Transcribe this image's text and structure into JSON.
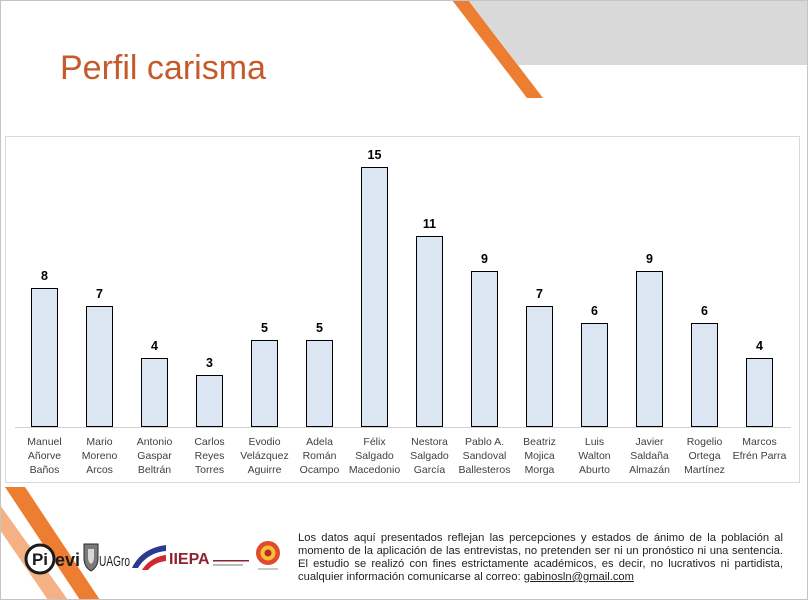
{
  "chart_data": {
    "type": "bar",
    "title": "Perfil carisma",
    "categories": [
      "Manuel\nAñorve\nBaños",
      "Mario\nMoreno\nArcos",
      "Antonio\nGaspar\nBeltrán",
      "Carlos\nReyes\nTorres",
      "Evodio\nVelázquez\nAguirre",
      "Adela\nRomán\nOcampo",
      "Félix\nSalgado\nMacedonio",
      "Nestora\nSalgado\nGarcía",
      "Pablo A.\nSandoval\nBallesteros",
      "Beatriz\nMojica\nMorga",
      "Luis\nWalton\nAburto",
      "Javier\nSaldaña\nAlmazán",
      "Rogelio\nOrtega\nMartínez",
      "Marcos\nEfrén Parra"
    ],
    "values": [
      8,
      7,
      4,
      3,
      5,
      5,
      15,
      11,
      9,
      7,
      6,
      9,
      6,
      4
    ],
    "data_labels": true,
    "y_axis_visible": false,
    "grid": false,
    "legend": "none",
    "colors": {
      "bar_fill": "#DCE6F2",
      "bar_border": "#000000",
      "value_label": "#000000",
      "category_label": "#404040"
    }
  },
  "theme": {
    "title_color": "#C55A2A",
    "accent_orange": "#ED7D31",
    "accent_peach": "#F4B183",
    "header_gray": "#D9D9D9"
  },
  "logos": {
    "pievi": {
      "icon": "pievi-logo",
      "mark": "Pi",
      "word": "evi"
    },
    "uagro": {
      "icon": "uagro-crest-icon",
      "text": "UAGro"
    },
    "partner": {
      "icon": "blue-red-swoosh-logo"
    },
    "iiepa": {
      "icon": "iiepa-logo",
      "text": "IIEPA"
    },
    "emblem": {
      "icon": "round-emblem-logo"
    }
  },
  "disclaimer": {
    "text": "Los datos aquí presentados reflejan las percepciones y estados de ánimo de la población al momento de la aplicación de las entrevistas, no pretenden ser ni un pronóstico ni una sentencia. El estudio se realizó con fines estrictamente académicos, es decir, no lucrativos ni partidista, cualquier información comunicarse al correo:",
    "email": "gabinosln@gmail.com"
  }
}
